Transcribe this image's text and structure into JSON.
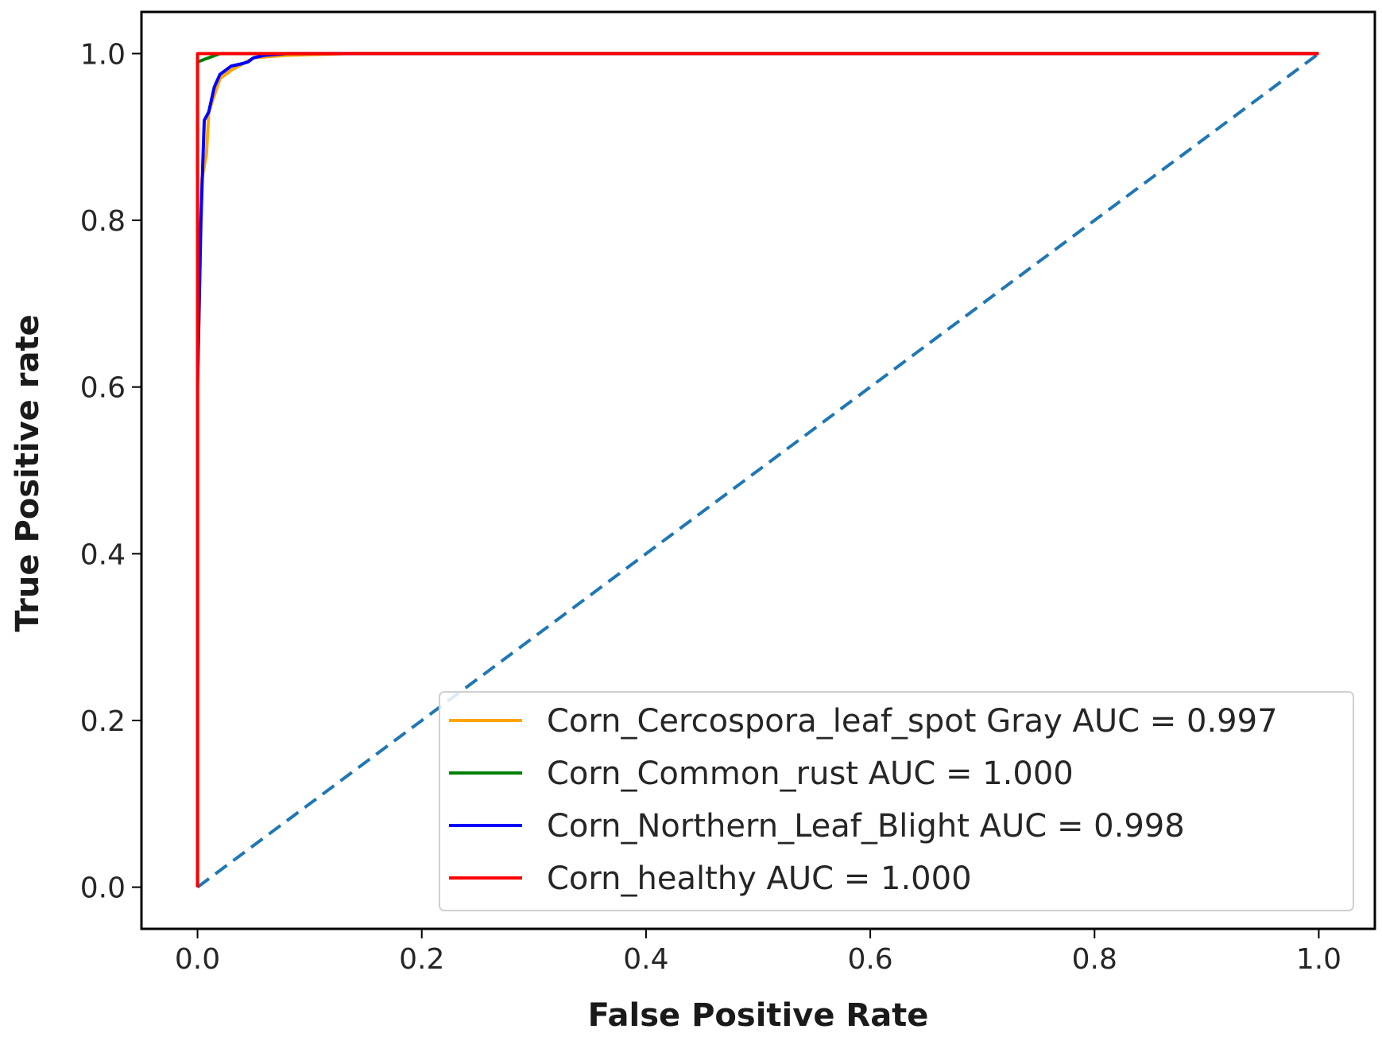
{
  "chart_data": {
    "type": "line",
    "title": "",
    "xlabel": "False Positive Rate",
    "ylabel": "True Positive rate",
    "xlim": [
      -0.05,
      1.05
    ],
    "ylim": [
      -0.05,
      1.05
    ],
    "grid": false,
    "legend_position": "lower-right",
    "x_ticks": [
      0.0,
      0.2,
      0.4,
      0.6,
      0.8,
      1.0
    ],
    "y_ticks": [
      0.0,
      0.2,
      0.4,
      0.6,
      0.8,
      1.0
    ],
    "x_tick_labels": [
      "0.0",
      "0.2",
      "0.4",
      "0.6",
      "0.8",
      "1.0"
    ],
    "y_tick_labels": [
      "0.0",
      "0.2",
      "0.4",
      "0.6",
      "0.8",
      "1.0"
    ],
    "series": [
      {
        "name": "Corn_Cercospora_leaf_spot Gray AUC = 0.997",
        "color": "#ffa500",
        "points": [
          [
            0.0,
            0.0
          ],
          [
            0.0,
            0.6
          ],
          [
            0.004,
            0.85
          ],
          [
            0.008,
            0.88
          ],
          [
            0.01,
            0.93
          ],
          [
            0.015,
            0.95
          ],
          [
            0.02,
            0.97
          ],
          [
            0.03,
            0.98
          ],
          [
            0.05,
            0.995
          ],
          [
            0.08,
            0.998
          ],
          [
            0.135,
            1.0
          ],
          [
            1.0,
            1.0
          ]
        ]
      },
      {
        "name": "Corn_Common_rust AUC = 1.000",
        "color": "#008000",
        "points": [
          [
            0.0,
            0.0
          ],
          [
            0.0,
            0.99
          ],
          [
            0.01,
            0.995
          ],
          [
            0.02,
            1.0
          ],
          [
            1.0,
            1.0
          ]
        ]
      },
      {
        "name": "Corn_Northern_Leaf_Blight AUC = 0.998",
        "color": "#0000ff",
        "points": [
          [
            0.0,
            0.0
          ],
          [
            0.0,
            0.6
          ],
          [
            0.003,
            0.8
          ],
          [
            0.006,
            0.92
          ],
          [
            0.01,
            0.93
          ],
          [
            0.015,
            0.96
          ],
          [
            0.02,
            0.975
          ],
          [
            0.03,
            0.985
          ],
          [
            0.04,
            0.988
          ],
          [
            0.045,
            0.99
          ],
          [
            0.05,
            0.995
          ],
          [
            0.06,
            0.998
          ],
          [
            0.08,
            1.0
          ],
          [
            1.0,
            1.0
          ]
        ]
      },
      {
        "name": "Corn_healthy AUC = 1.000",
        "color": "#ff0000",
        "points": [
          [
            0.0,
            0.0
          ],
          [
            0.0,
            1.0
          ],
          [
            1.0,
            1.0
          ]
        ]
      }
    ],
    "reference_line": {
      "style": "dashed",
      "color": "#1f77b4",
      "points": [
        [
          0.0,
          0.0
        ],
        [
          1.0,
          1.0
        ]
      ]
    }
  }
}
